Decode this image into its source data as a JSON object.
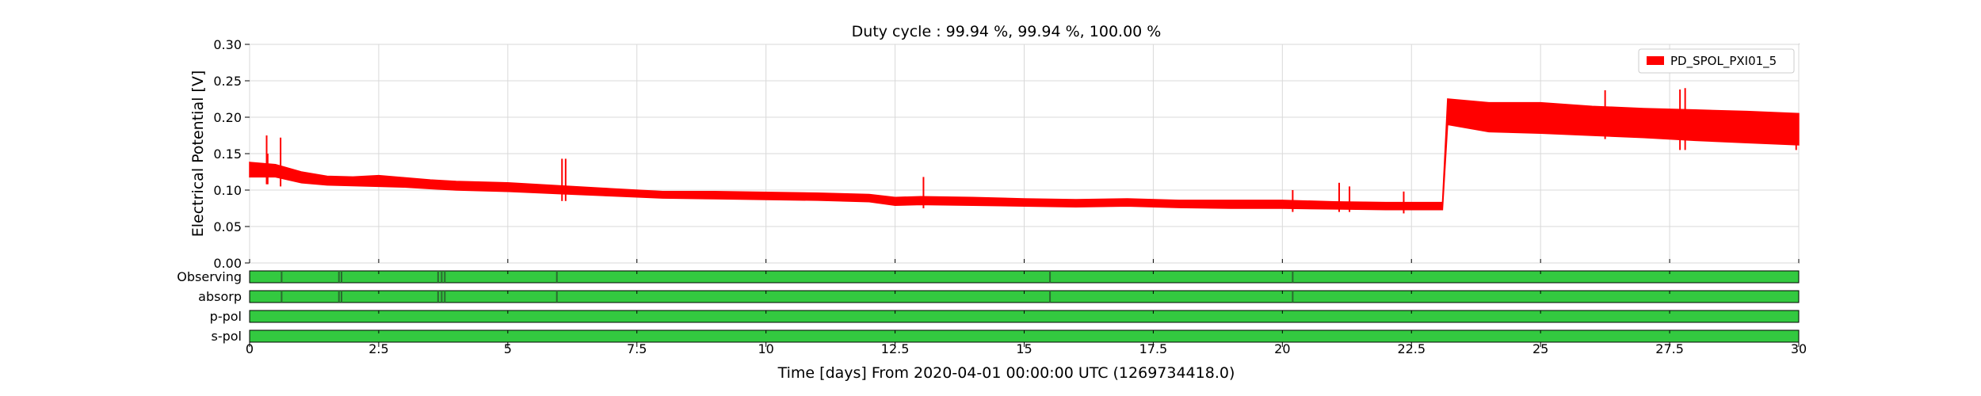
{
  "chart_data": {
    "type": "line",
    "title": "Duty cycle : 99.94 %, 99.94 %, 100.00 %",
    "xlabel": "Time [days] From 2020-04-01 00:00:00 UTC (1269734418.0)",
    "ylabel": "Electrical Potential [V]",
    "xlim": [
      0,
      30
    ],
    "ylim": [
      0,
      0.3
    ],
    "grid": true,
    "legend_position": "top-right",
    "x_ticks": [
      "0",
      "2.5",
      "5",
      "7.5",
      "10",
      "12.5",
      "15",
      "17.5",
      "20",
      "22.5",
      "25",
      "27.5",
      "30"
    ],
    "x_tick_values": [
      0,
      2.5,
      5,
      7.5,
      10,
      12.5,
      15,
      17.5,
      20,
      22.5,
      25,
      27.5,
      30
    ],
    "y_ticks": [
      "0.00",
      "0.05",
      "0.10",
      "0.15",
      "0.20",
      "0.25",
      "0.30"
    ],
    "y_tick_values": [
      0,
      0.05,
      0.1,
      0.15,
      0.2,
      0.25,
      0.3
    ],
    "series": [
      {
        "name": "PD_SPOL_PXI01_5",
        "color": "#ff0000",
        "x": [
          0,
          0.5,
          1,
          1.5,
          2,
          2.5,
          3,
          3.5,
          4,
          5,
          6,
          7,
          8,
          9,
          10,
          11,
          12,
          12.5,
          13,
          14,
          15,
          16,
          17,
          18,
          19,
          20,
          21,
          22,
          23.1,
          23.2,
          24,
          25,
          26,
          27,
          28,
          29,
          30
        ],
        "upper": [
          0.138,
          0.135,
          0.125,
          0.119,
          0.118,
          0.12,
          0.117,
          0.114,
          0.112,
          0.11,
          0.106,
          0.102,
          0.098,
          0.098,
          0.097,
          0.096,
          0.094,
          0.09,
          0.091,
          0.09,
          0.088,
          0.087,
          0.088,
          0.086,
          0.086,
          0.086,
          0.084,
          0.083,
          0.083,
          0.225,
          0.22,
          0.22,
          0.215,
          0.212,
          0.21,
          0.208,
          0.205
        ],
        "lower": [
          0.118,
          0.118,
          0.11,
          0.107,
          0.106,
          0.105,
          0.104,
          0.102,
          0.1,
          0.098,
          0.095,
          0.092,
          0.089,
          0.088,
          0.087,
          0.086,
          0.084,
          0.079,
          0.08,
          0.079,
          0.078,
          0.077,
          0.078,
          0.076,
          0.075,
          0.075,
          0.074,
          0.073,
          0.073,
          0.19,
          0.18,
          0.178,
          0.175,
          0.172,
          0.168,
          0.165,
          0.162
        ],
        "spikes": [
          {
            "x": 0.35,
            "y_low": 0.108,
            "y_high": 0.15
          },
          {
            "x": 0.33,
            "y_low": 0.108,
            "y_high": 0.175
          },
          {
            "x": 0.6,
            "y_low": 0.105,
            "y_high": 0.172
          },
          {
            "x": 6.05,
            "y_low": 0.085,
            "y_high": 0.143
          },
          {
            "x": 6.12,
            "y_low": 0.085,
            "y_high": 0.143
          },
          {
            "x": 13.05,
            "y_low": 0.075,
            "y_high": 0.118
          },
          {
            "x": 20.2,
            "y_low": 0.07,
            "y_high": 0.1
          },
          {
            "x": 21.1,
            "y_low": 0.07,
            "y_high": 0.11
          },
          {
            "x": 21.3,
            "y_low": 0.07,
            "y_high": 0.105
          },
          {
            "x": 22.35,
            "y_low": 0.068,
            "y_high": 0.098
          },
          {
            "x": 26.25,
            "y_low": 0.17,
            "y_high": 0.237
          },
          {
            "x": 27.7,
            "y_low": 0.155,
            "y_high": 0.238
          },
          {
            "x": 27.8,
            "y_low": 0.155,
            "y_high": 0.24
          },
          {
            "x": 29.95,
            "y_low": 0.155,
            "y_high": 0.19
          }
        ]
      }
    ],
    "segments": [
      {
        "label": "Observing",
        "color": "#33c940",
        "gap_color": "#2a6b2f",
        "gaps": [
          0.62,
          1.73,
          1.78,
          3.65,
          3.72,
          3.78,
          5.95,
          15.5,
          20.2
        ]
      },
      {
        "label": "absorp",
        "color": "#33c940",
        "gap_color": "#2a6b2f",
        "gaps": [
          0.62,
          1.73,
          1.78,
          3.65,
          3.72,
          3.78,
          5.95,
          15.5,
          20.2
        ]
      },
      {
        "label": "p-pol",
        "color": "#33c940",
        "gap_color": "#2a6b2f",
        "gaps": []
      },
      {
        "label": "s-pol",
        "color": "#33c940",
        "gap_color": "#2a6b2f",
        "gaps": []
      }
    ]
  }
}
